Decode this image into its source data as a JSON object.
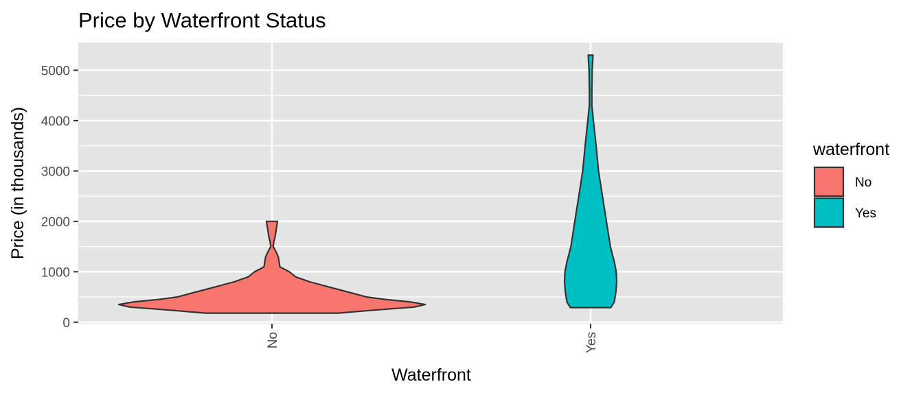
{
  "chart_data": {
    "type": "violin",
    "title": "Price by Waterfront Status",
    "xlabel": "Waterfront",
    "ylabel": "Price (in thousands)",
    "categories": [
      "No",
      "Yes"
    ],
    "ylim": [
      -30,
      5550
    ],
    "yticks": [
      0,
      1000,
      2000,
      3000,
      4000,
      5000
    ],
    "grid": true,
    "legend": {
      "title": "waterfront",
      "position": "right",
      "entries": [
        {
          "label": "No",
          "color": "#F8766D"
        },
        {
          "label": "Yes",
          "color": "#00BFC4"
        }
      ]
    },
    "series": [
      {
        "category": "No",
        "color": "#F8766D",
        "min": 180,
        "max": 2000,
        "density_profile": [
          [
            180,
            0.42
          ],
          [
            240,
            0.65
          ],
          [
            300,
            0.9
          ],
          [
            350,
            0.97
          ],
          [
            400,
            0.88
          ],
          [
            450,
            0.72
          ],
          [
            500,
            0.6
          ],
          [
            600,
            0.48
          ],
          [
            700,
            0.36
          ],
          [
            800,
            0.24
          ],
          [
            900,
            0.15
          ],
          [
            1000,
            0.11
          ],
          [
            1100,
            0.05
          ],
          [
            1200,
            0.045
          ],
          [
            1300,
            0.04
          ],
          [
            1400,
            0.025
          ],
          [
            1500,
            0.008
          ],
          [
            1600,
            0.012
          ],
          [
            1700,
            0.02
          ],
          [
            1800,
            0.025
          ],
          [
            1900,
            0.03
          ],
          [
            2000,
            0.035
          ]
        ]
      },
      {
        "category": "Yes",
        "color": "#00BFC4",
        "min": 290,
        "max": 5300,
        "density_profile": [
          [
            290,
            0.128
          ],
          [
            400,
            0.15
          ],
          [
            600,
            0.16
          ],
          [
            800,
            0.165
          ],
          [
            1000,
            0.162
          ],
          [
            1200,
            0.15
          ],
          [
            1500,
            0.125
          ],
          [
            2000,
            0.1
          ],
          [
            2500,
            0.075
          ],
          [
            3000,
            0.05
          ],
          [
            3500,
            0.035
          ],
          [
            4000,
            0.018
          ],
          [
            4300,
            0.008
          ],
          [
            4600,
            0.008
          ],
          [
            5000,
            0.01
          ],
          [
            5300,
            0.015
          ]
        ]
      }
    ]
  },
  "colors": {
    "panel_background": "#E5E5E5",
    "grid_line": "#FFFFFF",
    "outline": "#333333"
  }
}
